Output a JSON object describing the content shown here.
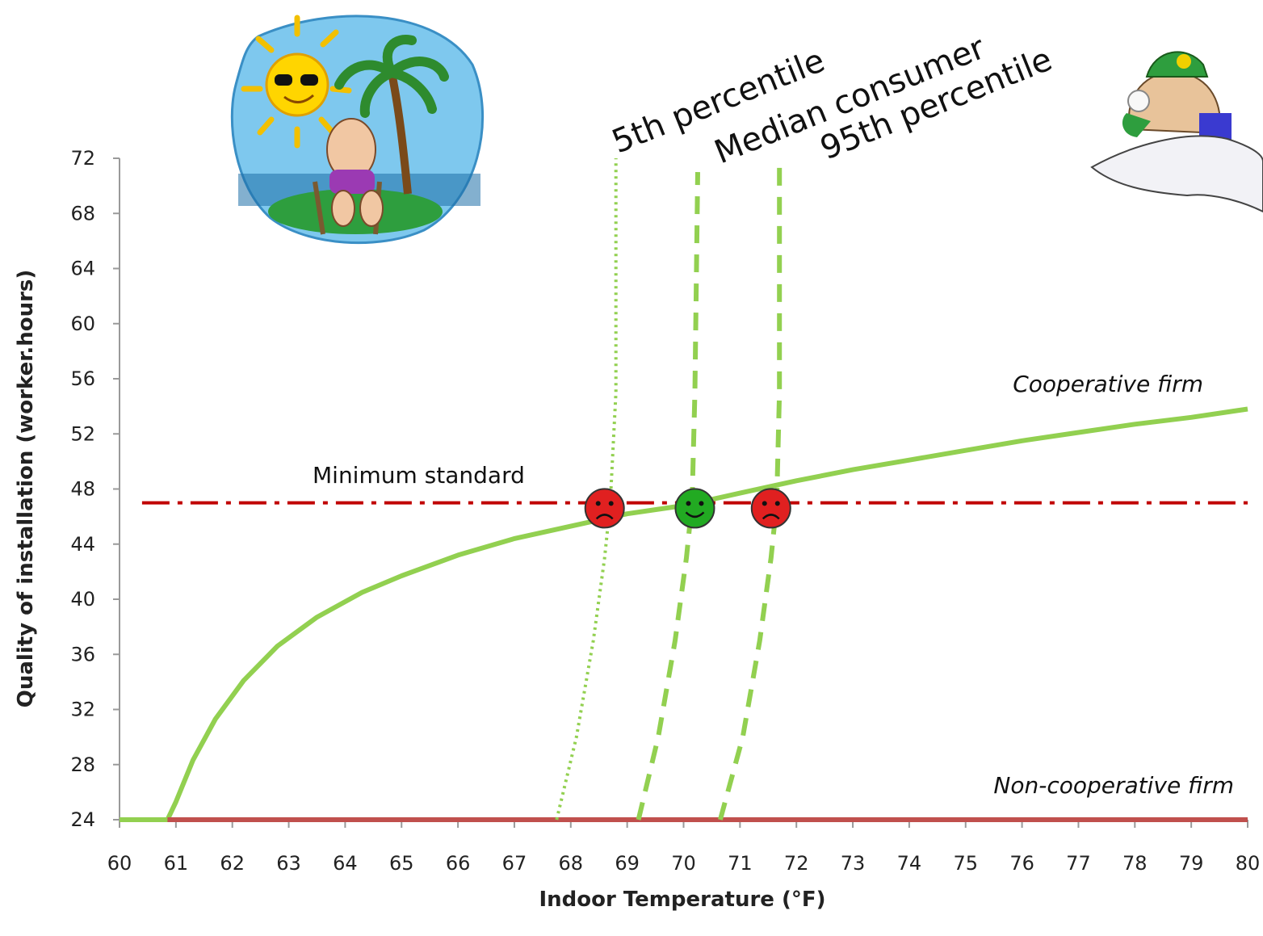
{
  "chart_data": {
    "type": "line",
    "xlabel": "Indoor Temperature (°F)",
    "ylabel": "Quality of installation  (worker.hours)",
    "xlim": [
      60,
      80
    ],
    "ylim": [
      24,
      72
    ],
    "x_ticks": [
      60,
      61,
      62,
      63,
      64,
      65,
      66,
      67,
      68,
      69,
      70,
      71,
      72,
      73,
      74,
      75,
      76,
      77,
      78,
      79,
      80
    ],
    "y_ticks": [
      24,
      28,
      32,
      36,
      40,
      44,
      48,
      52,
      56,
      60,
      64,
      68,
      72
    ],
    "grid": false,
    "series": [
      {
        "name": "Cooperative firm",
        "color": "#92d050",
        "style": "solid",
        "points": [
          [
            60,
            24
          ],
          [
            60.85,
            24
          ],
          [
            61,
            25.3
          ],
          [
            61.3,
            28.3
          ],
          [
            61.7,
            31.3
          ],
          [
            62.2,
            34.1
          ],
          [
            62.8,
            36.6
          ],
          [
            63.5,
            38.7
          ],
          [
            64.3,
            40.5
          ],
          [
            65,
            41.7
          ],
          [
            66,
            43.2
          ],
          [
            67,
            44.4
          ],
          [
            68,
            45.3
          ],
          [
            69,
            46.2
          ],
          [
            70,
            46.8
          ],
          [
            71,
            47.7
          ],
          [
            72,
            48.6
          ],
          [
            73,
            49.4
          ],
          [
            74,
            50.1
          ],
          [
            75,
            50.8
          ],
          [
            76,
            51.5
          ],
          [
            77,
            52.1
          ],
          [
            78,
            52.7
          ],
          [
            79,
            53.2
          ],
          [
            80,
            53.8
          ]
        ]
      },
      {
        "name": "Non-cooperative firm",
        "color": "#c0504d",
        "style": "solid",
        "points": [
          [
            60.85,
            24
          ],
          [
            80,
            24
          ]
        ]
      },
      {
        "name": "Minimum standard",
        "color": "#c00000",
        "style": "dash-dot",
        "points": [
          [
            60.4,
            47
          ],
          [
            80,
            47
          ]
        ]
      },
      {
        "name": "5th percentile",
        "color": "#92d050",
        "style": "dotted",
        "points": [
          [
            67.75,
            24
          ],
          [
            68.1,
            30
          ],
          [
            68.4,
            37
          ],
          [
            68.6,
            43
          ],
          [
            68.7,
            47
          ],
          [
            68.8,
            55
          ],
          [
            68.8,
            72
          ]
        ]
      },
      {
        "name": "Median consumer",
        "color": "#92d050",
        "style": "dashed",
        "points": [
          [
            69.2,
            24
          ],
          [
            69.55,
            30
          ],
          [
            69.85,
            37
          ],
          [
            70.05,
            43
          ],
          [
            70.15,
            47
          ],
          [
            70.2,
            55
          ],
          [
            70.25,
            71
          ]
        ]
      },
      {
        "name": "95th percentile",
        "color": "#92d050",
        "style": "dashed",
        "points": [
          [
            70.65,
            24
          ],
          [
            71.05,
            30
          ],
          [
            71.35,
            37
          ],
          [
            71.55,
            43
          ],
          [
            71.65,
            47
          ],
          [
            71.7,
            55
          ],
          [
            71.7,
            72
          ]
        ]
      }
    ],
    "markers": [
      {
        "x": 68.6,
        "y": 46.6,
        "face": "sad",
        "color": "#e02020"
      },
      {
        "x": 70.2,
        "y": 46.6,
        "face": "happy",
        "color": "#22aa22"
      },
      {
        "x": 71.55,
        "y": 46.6,
        "face": "sad",
        "color": "#e02020"
      }
    ],
    "annotations": [
      "5th percentile",
      "Median consumer",
      "95th percentile",
      "Cooperative firm",
      "Non-cooperative firm",
      "Minimum standard"
    ]
  },
  "illustrations": {
    "left": "beach-sun-icon",
    "right": "snowball-winter-icon"
  }
}
